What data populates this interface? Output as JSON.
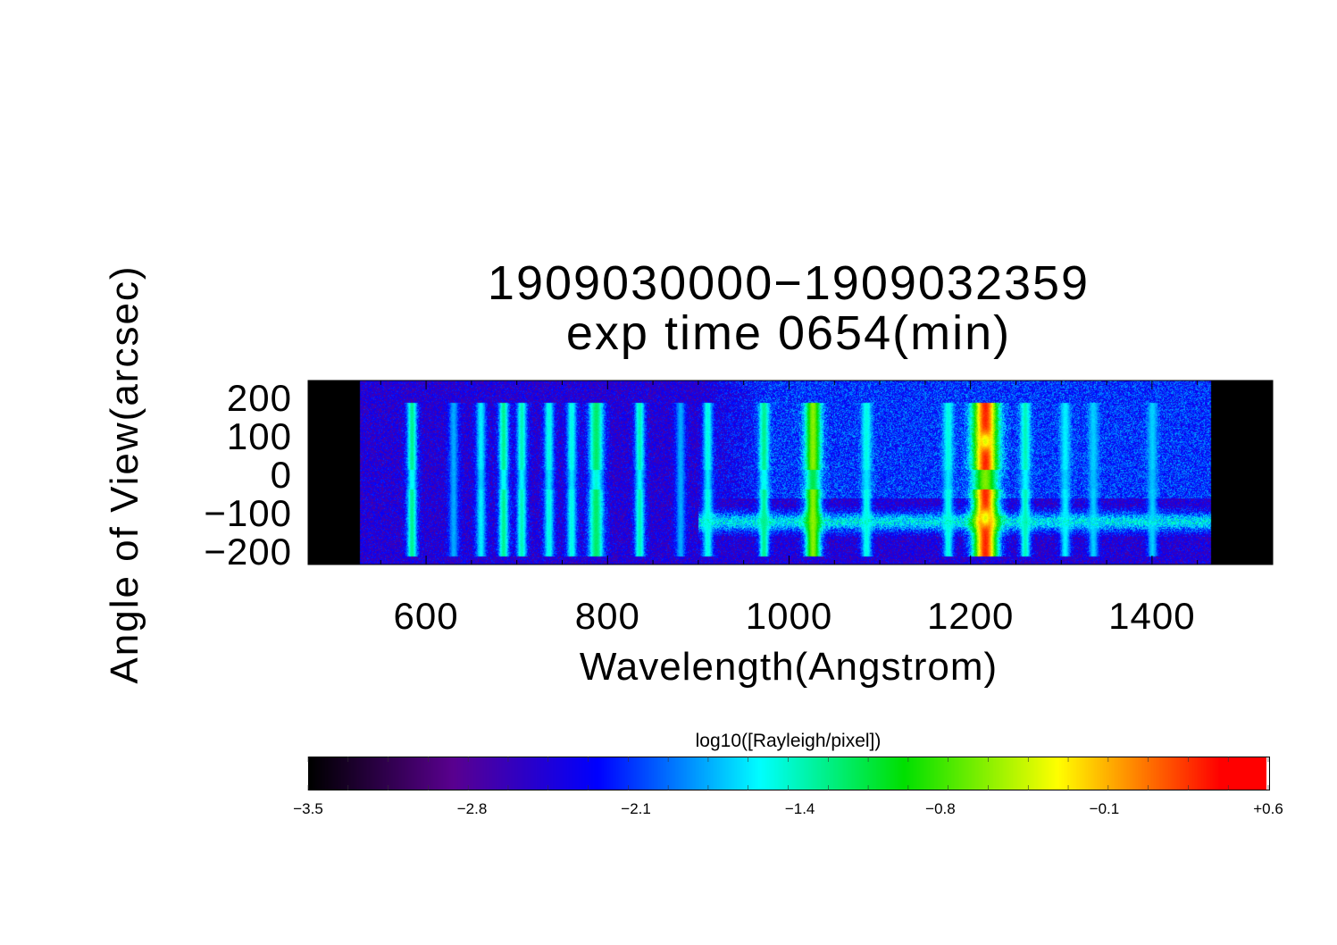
{
  "chart_data": {
    "type": "heatmap",
    "title": [
      "1909030000−1909032359",
      "exp time 0654(min)"
    ],
    "xlabel": "Wavelength(Angstrom)",
    "ylabel": "Angle of View(arcsec)",
    "xlim": [
      470,
      1533
    ],
    "ylim": [
      -232,
      246
    ],
    "xticks": [
      600,
      800,
      1000,
      1200,
      1400
    ],
    "yticks": [
      200,
      100,
      0,
      -100,
      -200
    ],
    "ytick_labels": [
      "200",
      "100",
      "0",
      "−100",
      "−200"
    ],
    "data_range_wavelength": [
      527,
      1465
    ],
    "background_log_intensity": -2.5,
    "emission_lines": [
      {
        "wavelength": 584,
        "peak": -1.3
      },
      {
        "wavelength": 630,
        "peak": -1.8
      },
      {
        "wavelength": 660,
        "peak": -1.6
      },
      {
        "wavelength": 685,
        "peak": -1.3
      },
      {
        "wavelength": 705,
        "peak": -1.4
      },
      {
        "wavelength": 735,
        "peak": -1.5
      },
      {
        "wavelength": 760,
        "peak": -1.5
      },
      {
        "wavelength": 787,
        "peak": -1.2
      },
      {
        "wavelength": 835,
        "peak": -1.4
      },
      {
        "wavelength": 880,
        "peak": -1.8
      },
      {
        "wavelength": 910,
        "peak": -1.5
      },
      {
        "wavelength": 972,
        "peak": -1.3
      },
      {
        "wavelength": 1026,
        "peak": -0.6
      },
      {
        "wavelength": 1085,
        "peak": -1.5
      },
      {
        "wavelength": 1175,
        "peak": -1.5
      },
      {
        "wavelength": 1216,
        "peak": 0.3
      },
      {
        "wavelength": 1260,
        "peak": -1.4
      },
      {
        "wavelength": 1304,
        "peak": -1.6
      },
      {
        "wavelength": 1335,
        "peak": -1.7
      },
      {
        "wavelength": 1400,
        "peak": -1.7
      }
    ],
    "colorbar": {
      "label": "log10([Rayleigh/pixel])",
      "range": [
        -3.5,
        0.6
      ],
      "tick_labels": [
        "−3.5",
        "−2.8",
        "−2.1",
        "−1.4",
        "−0.8",
        "−0.1",
        "+0.6"
      ],
      "tick_values": [
        -3.5,
        -2.8,
        -2.1,
        -1.4,
        -0.8,
        -0.1,
        0.6
      ],
      "colormap": [
        "#000000",
        "#5a0090",
        "#0000ff",
        "#00ffff",
        "#00e000",
        "#ffff00",
        "#ff0000"
      ]
    }
  }
}
